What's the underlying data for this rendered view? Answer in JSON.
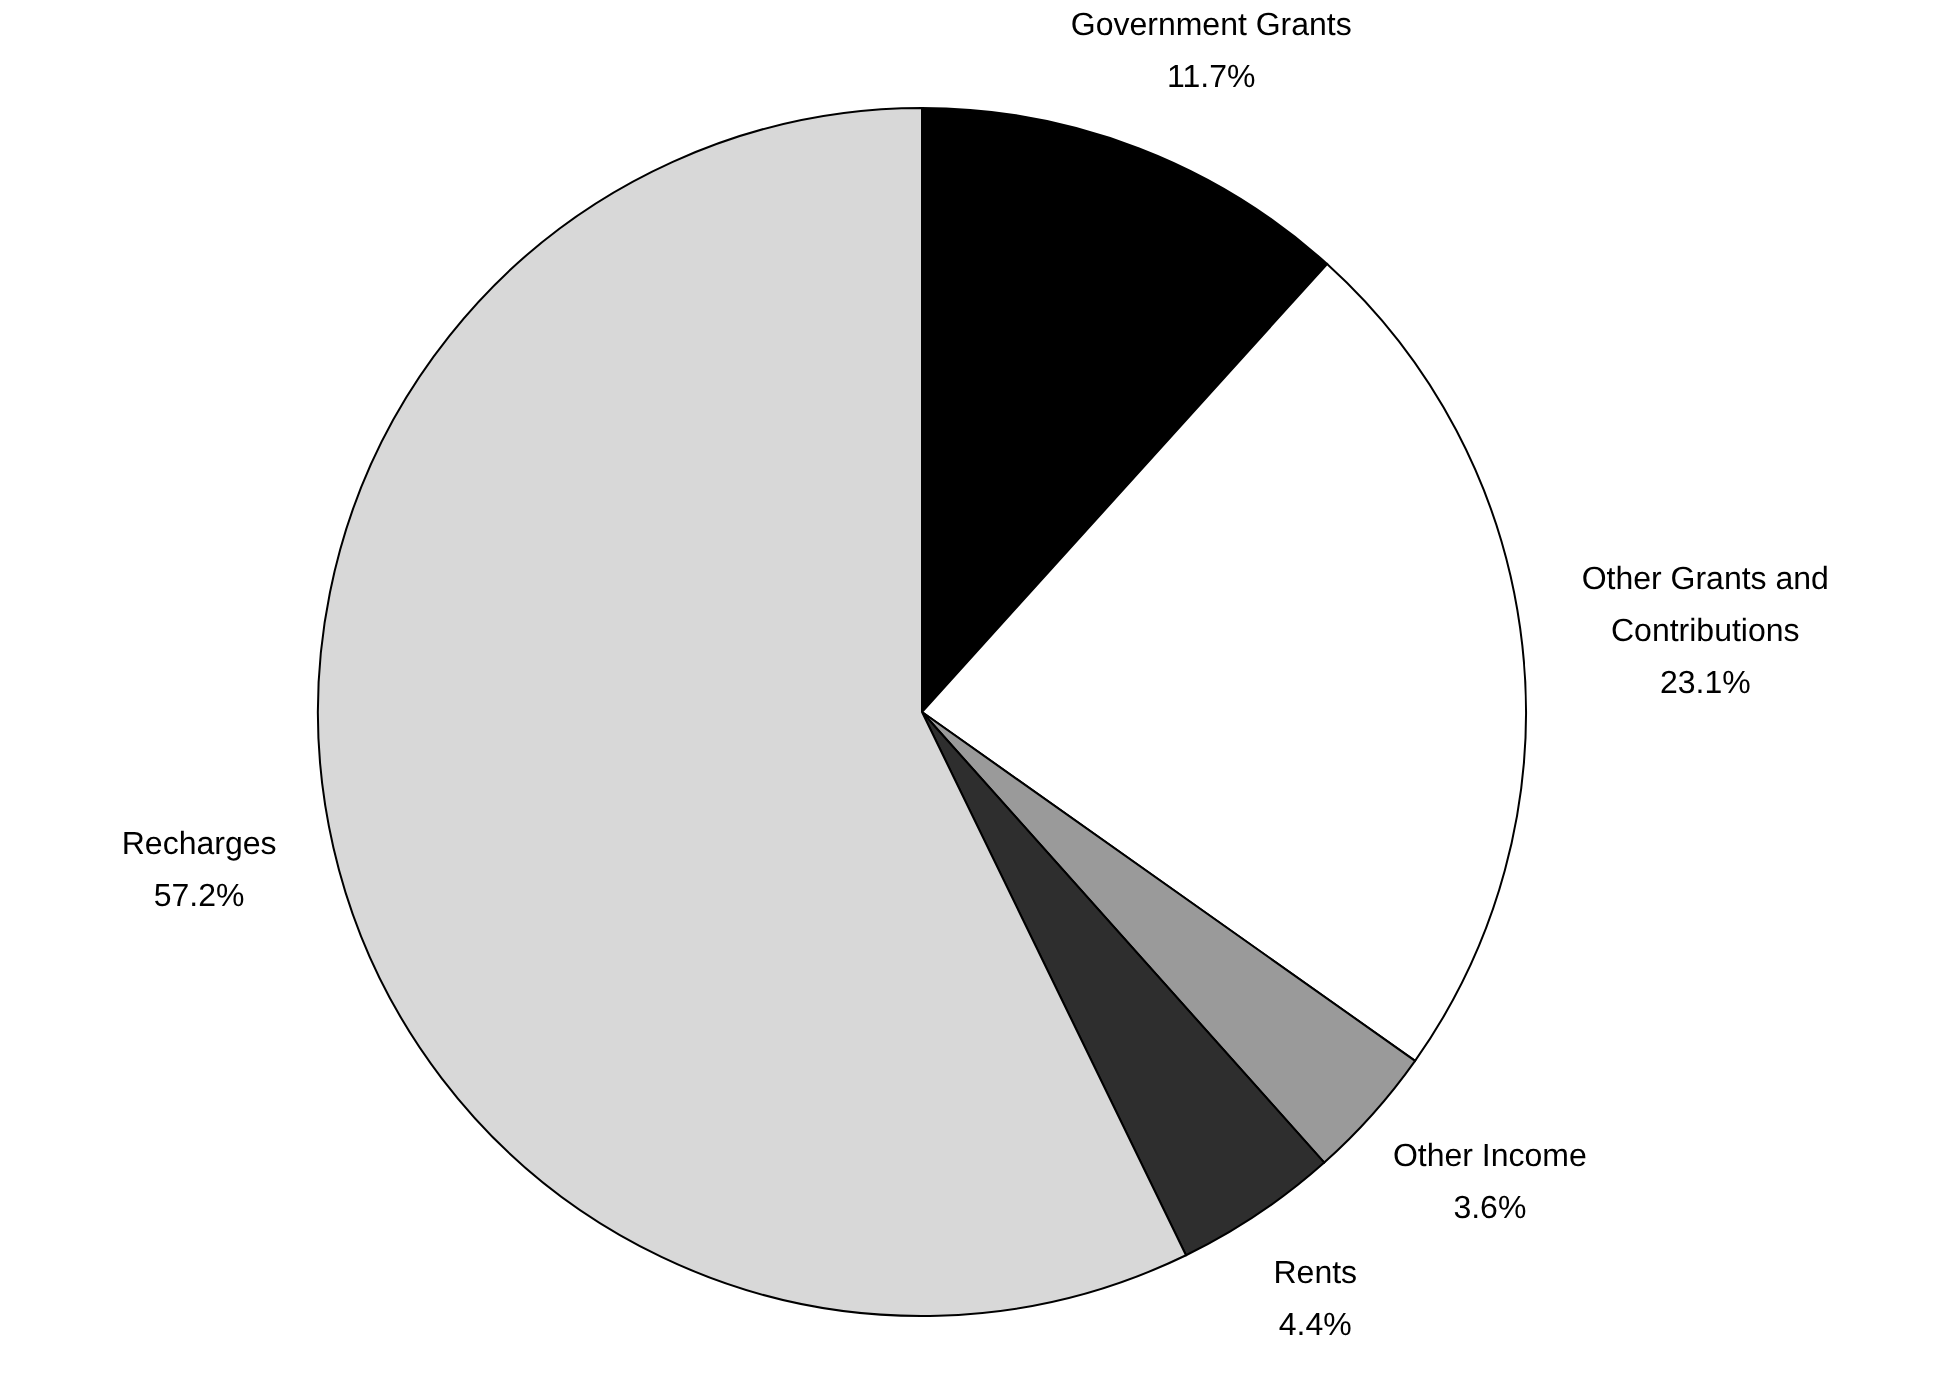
{
  "chart_data": {
    "type": "pie",
    "categories": [
      "Government Grants",
      "Other Grants and Contributions",
      "Other Income",
      "Rents",
      "Recharges"
    ],
    "values": [
      11.7,
      23.1,
      3.6,
      4.4,
      57.2
    ],
    "value_labels": [
      "11.7%",
      "23.1%",
      "3.6%",
      "4.4%",
      "57.2%"
    ],
    "colors": [
      "#000000",
      "#ffffff",
      "#9a9a9a",
      "#2e2e2e",
      "#d8d8d8"
    ]
  }
}
